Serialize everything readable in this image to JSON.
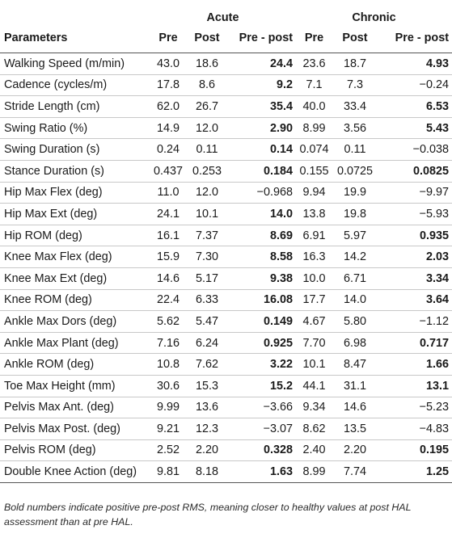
{
  "table": {
    "group_headers": {
      "acute": "Acute",
      "chronic": "Chronic"
    },
    "column_headers": {
      "parameters": "Parameters",
      "acute_pre": "Pre",
      "acute_post": "Post",
      "acute_pre_post": "Pre - post",
      "chronic_pre": "Pre",
      "chronic_post": "Post",
      "chronic_pre_post": "Pre - post"
    },
    "rows": [
      {
        "param": "Walking Speed (m/min)",
        "acute_pre": "43.0",
        "acute_post": "18.6",
        "acute_pp": "24.4",
        "acute_pp_bold": true,
        "chronic_pre": "23.6",
        "chronic_post": "18.7",
        "chronic_pp": "4.93",
        "chronic_pp_bold": true
      },
      {
        "param": "Cadence (cycles/m)",
        "acute_pre": "17.8",
        "acute_post": "8.6",
        "acute_pp": "9.2",
        "acute_pp_bold": true,
        "chronic_pre": "7.1",
        "chronic_post": "7.3",
        "chronic_pp": "−0.24",
        "chronic_pp_bold": false
      },
      {
        "param": "Stride Length (cm)",
        "acute_pre": "62.0",
        "acute_post": "26.7",
        "acute_pp": "35.4",
        "acute_pp_bold": true,
        "chronic_pre": "40.0",
        "chronic_post": "33.4",
        "chronic_pp": "6.53",
        "chronic_pp_bold": true
      },
      {
        "param": "Swing Ratio (%)",
        "acute_pre": "14.9",
        "acute_post": "12.0",
        "acute_pp": "2.90",
        "acute_pp_bold": true,
        "chronic_pre": "8.99",
        "chronic_post": "3.56",
        "chronic_pp": "5.43",
        "chronic_pp_bold": true
      },
      {
        "param": "Swing Duration (s)",
        "acute_pre": "0.24",
        "acute_post": "0.11",
        "acute_pp": "0.14",
        "acute_pp_bold": true,
        "chronic_pre": "0.074",
        "chronic_post": "0.11",
        "chronic_pp": "−0.038",
        "chronic_pp_bold": false
      },
      {
        "param": "Stance Duration (s)",
        "acute_pre": "0.437",
        "acute_post": "0.253",
        "acute_pp": "0.184",
        "acute_pp_bold": true,
        "chronic_pre": "0.155",
        "chronic_post": "0.0725",
        "chronic_pp": "0.0825",
        "chronic_pp_bold": true
      },
      {
        "param": "Hip Max Flex (deg)",
        "acute_pre": "11.0",
        "acute_post": "12.0",
        "acute_pp": "−0.968",
        "acute_pp_bold": false,
        "chronic_pre": "9.94",
        "chronic_post": "19.9",
        "chronic_pp": "−9.97",
        "chronic_pp_bold": false
      },
      {
        "param": "Hip Max Ext (deg)",
        "acute_pre": "24.1",
        "acute_post": "10.1",
        "acute_pp": "14.0",
        "acute_pp_bold": true,
        "chronic_pre": "13.8",
        "chronic_post": "19.8",
        "chronic_pp": "−5.93",
        "chronic_pp_bold": false
      },
      {
        "param": "Hip ROM (deg)",
        "acute_pre": "16.1",
        "acute_post": "7.37",
        "acute_pp": "8.69",
        "acute_pp_bold": true,
        "chronic_pre": "6.91",
        "chronic_post": "5.97",
        "chronic_pp": "0.935",
        "chronic_pp_bold": true
      },
      {
        "param": "Knee Max Flex (deg)",
        "acute_pre": "15.9",
        "acute_post": "7.30",
        "acute_pp": "8.58",
        "acute_pp_bold": true,
        "chronic_pre": "16.3",
        "chronic_post": "14.2",
        "chronic_pp": "2.03",
        "chronic_pp_bold": true
      },
      {
        "param": "Knee Max Ext (deg)",
        "acute_pre": "14.6",
        "acute_post": "5.17",
        "acute_pp": "9.38",
        "acute_pp_bold": true,
        "chronic_pre": "10.0",
        "chronic_post": "6.71",
        "chronic_pp": "3.34",
        "chronic_pp_bold": true
      },
      {
        "param": "Knee ROM (deg)",
        "acute_pre": "22.4",
        "acute_post": "6.33",
        "acute_pp": "16.08",
        "acute_pp_bold": true,
        "chronic_pre": "17.7",
        "chronic_post": "14.0",
        "chronic_pp": "3.64",
        "chronic_pp_bold": true
      },
      {
        "param": "Ankle Max Dors (deg)",
        "acute_pre": "5.62",
        "acute_post": "5.47",
        "acute_pp": "0.149",
        "acute_pp_bold": true,
        "chronic_pre": "4.67",
        "chronic_post": "5.80",
        "chronic_pp": "−1.12",
        "chronic_pp_bold": false
      },
      {
        "param": "Ankle Max Plant (deg)",
        "acute_pre": "7.16",
        "acute_post": "6.24",
        "acute_pp": "0.925",
        "acute_pp_bold": true,
        "chronic_pre": "7.70",
        "chronic_post": "6.98",
        "chronic_pp": "0.717",
        "chronic_pp_bold": true
      },
      {
        "param": "Ankle ROM (deg)",
        "acute_pre": "10.8",
        "acute_post": "7.62",
        "acute_pp": "3.22",
        "acute_pp_bold": true,
        "chronic_pre": "10.1",
        "chronic_post": "8.47",
        "chronic_pp": "1.66",
        "chronic_pp_bold": true
      },
      {
        "param": "Toe Max Height (mm)",
        "acute_pre": "30.6",
        "acute_post": "15.3",
        "acute_pp": "15.2",
        "acute_pp_bold": true,
        "chronic_pre": "44.1",
        "chronic_post": "31.1",
        "chronic_pp": "13.1",
        "chronic_pp_bold": true
      },
      {
        "param": "Pelvis Max Ant. (deg)",
        "acute_pre": "9.99",
        "acute_post": "13.6",
        "acute_pp": "−3.66",
        "acute_pp_bold": false,
        "chronic_pre": "9.34",
        "chronic_post": "14.6",
        "chronic_pp": "−5.23",
        "chronic_pp_bold": false
      },
      {
        "param": "Pelvis Max Post. (deg)",
        "acute_pre": "9.21",
        "acute_post": "12.3",
        "acute_pp": "−3.07",
        "acute_pp_bold": false,
        "chronic_pre": "8.62",
        "chronic_post": "13.5",
        "chronic_pp": "−4.83",
        "chronic_pp_bold": false
      },
      {
        "param": "Pelvis ROM (deg)",
        "acute_pre": "2.52",
        "acute_post": "2.20",
        "acute_pp": "0.328",
        "acute_pp_bold": true,
        "chronic_pre": "2.40",
        "chronic_post": "2.20",
        "chronic_pp": "0.195",
        "chronic_pp_bold": true
      },
      {
        "param": "Double Knee Action (deg)",
        "acute_pre": "9.81",
        "acute_post": "8.18",
        "acute_pp": "1.63",
        "acute_pp_bold": true,
        "chronic_pre": "8.99",
        "chronic_post": "7.74",
        "chronic_pp": "1.25",
        "chronic_pp_bold": true
      }
    ]
  },
  "footnote": "Bold numbers indicate positive pre-post RMS, meaning closer to healthy values at post HAL assessment than at pre HAL."
}
